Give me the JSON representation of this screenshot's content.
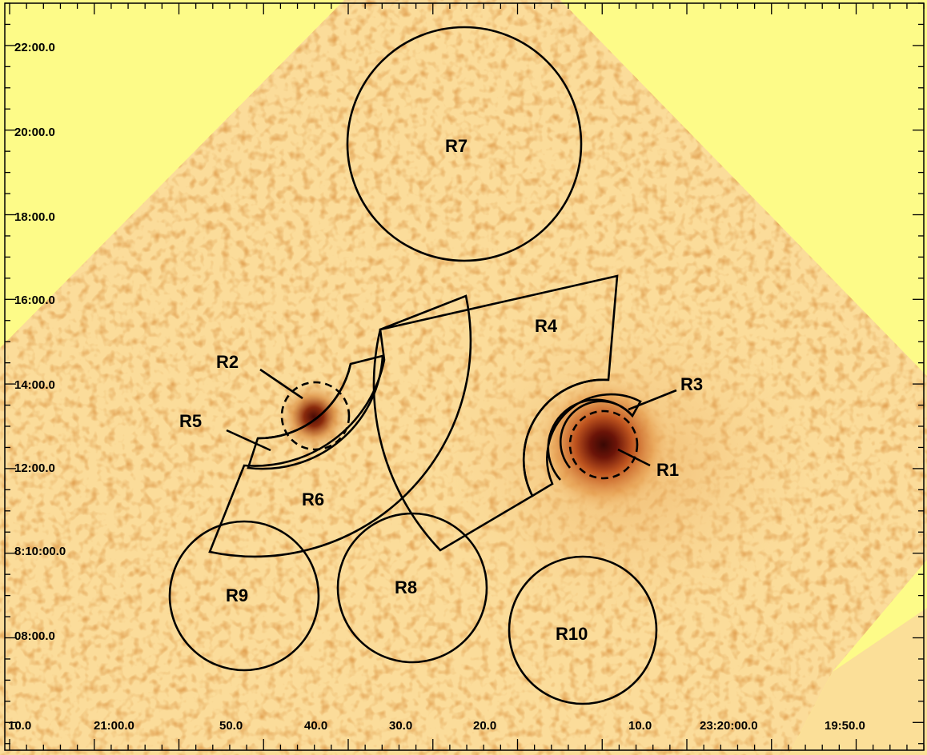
{
  "image": {
    "background_color": "#fdfb88",
    "field_color": "#fbdc9a",
    "source_colors": [
      "#e49a4a",
      "#c0551f",
      "#5a1006"
    ]
  },
  "regions": {
    "R1": "R1",
    "R2": "R2",
    "R3": "R3",
    "R4": "R4",
    "R5": "R5",
    "R6": "R6",
    "R7": "R7",
    "R8": "R8",
    "R9": "R9",
    "R10": "R10"
  },
  "axes": {
    "dec_labels": [
      "22:00.0",
      "20:00.0",
      "18:00.0",
      "16:00.0",
      "14:00.0",
      "12:00.0",
      "8:10:00.0",
      "08:00.0"
    ],
    "ra_labels": [
      "10.0",
      "21:00.0",
      "50.0",
      "40.0",
      "30.0",
      "20.0",
      "10.0",
      "23:20:00.0",
      "19:50.0"
    ]
  }
}
